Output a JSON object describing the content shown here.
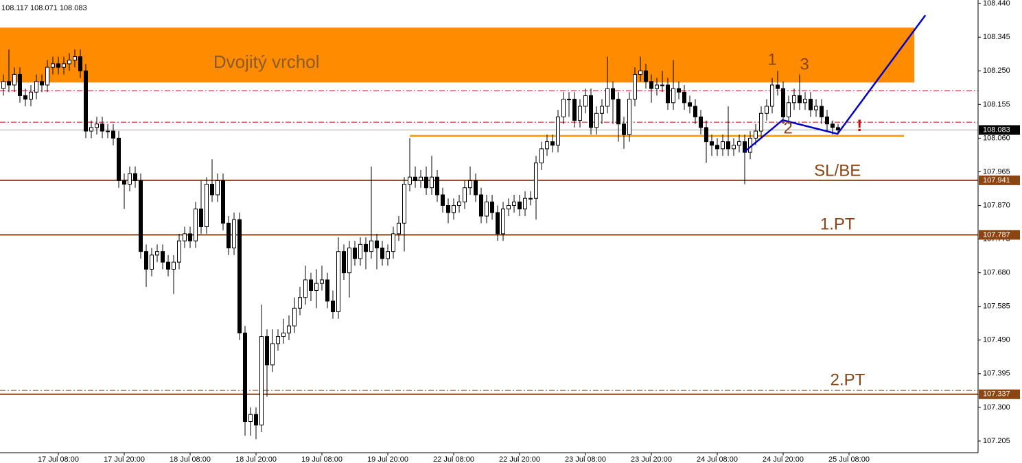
{
  "chart_data": {
    "type": "candlestick",
    "header": "108.117 108.071 108.083",
    "open": [
      108.2,
      108.22,
      108.21,
      108.24,
      108.18,
      108.17,
      108.19,
      108.22,
      108.21,
      108.26,
      108.27,
      108.26,
      108.27,
      108.28,
      108.29,
      108.25,
      108.08,
      108.09,
      108.1,
      108.08,
      108.08,
      108.06,
      107.94,
      107.93,
      107.96,
      107.94,
      107.74,
      107.69,
      107.73,
      107.74,
      107.71,
      107.69,
      107.71,
      107.77,
      107.79,
      107.77,
      107.86,
      107.81,
      107.93,
      107.9,
      107.94,
      107.82,
      107.75,
      107.83,
      107.51,
      107.26,
      107.28,
      107.25,
      107.5,
      107.42,
      107.48,
      107.5,
      107.51,
      107.53,
      107.58,
      107.61,
      107.66,
      107.63,
      107.65,
      107.66,
      107.6,
      107.57,
      107.74,
      107.68,
      107.75,
      107.72,
      107.76,
      107.74,
      107.77,
      107.75,
      107.72,
      107.74,
      107.79,
      107.82,
      107.93,
      107.95,
      107.94,
      107.95,
      107.92,
      107.95,
      107.9,
      107.87,
      107.85,
      107.87,
      107.88,
      107.92,
      107.94,
      107.9,
      107.84,
      107.88,
      107.85,
      107.79,
      107.86,
      107.87,
      107.88,
      107.86,
      107.89,
      107.89,
      107.99,
      108.03,
      108.05,
      108.04,
      108.12,
      108.17,
      108.17,
      108.11,
      108.15,
      108.18,
      108.09,
      108.13,
      108.15,
      108.2,
      108.17,
      108.1,
      108.07,
      108.17,
      108.24,
      108.25,
      108.22,
      108.2,
      108.21,
      108.21,
      108.16,
      108.2,
      108.19,
      108.16,
      108.15,
      108.12,
      108.09,
      108.05,
      108.04,
      108.03,
      108.05,
      108.03,
      108.04,
      108.05,
      108.02,
      108.06,
      108.08,
      108.13,
      108.15,
      108.21,
      108.2,
      108.12,
      108.16,
      108.18,
      108.16,
      108.17,
      108.14,
      108.15,
      108.12,
      108.1,
      108.09
    ],
    "high": [
      108.24,
      108.31,
      108.26,
      108.26,
      108.2,
      108.21,
      108.24,
      108.24,
      108.28,
      108.29,
      108.29,
      108.29,
      108.3,
      108.31,
      108.31,
      108.27,
      108.11,
      108.12,
      108.12,
      108.1,
      108.1,
      108.08,
      107.96,
      107.98,
      107.98,
      107.96,
      107.76,
      107.75,
      107.76,
      107.76,
      107.73,
      107.73,
      107.79,
      107.81,
      107.81,
      107.88,
      107.94,
      107.95,
      108.0,
      107.96,
      107.96,
      107.84,
      107.85,
      107.85,
      107.53,
      107.3,
      107.3,
      107.59,
      107.52,
      107.52,
      107.52,
      107.55,
      107.56,
      107.61,
      107.64,
      107.7,
      107.68,
      107.69,
      107.7,
      107.68,
      107.63,
      107.78,
      107.76,
      107.77,
      107.77,
      107.78,
      107.78,
      107.98,
      107.79,
      107.77,
      107.76,
      107.81,
      107.84,
      107.95,
      108.06,
      107.98,
      107.97,
      107.98,
      108.01,
      107.97,
      107.92,
      107.89,
      107.89,
      107.9,
      107.94,
      107.98,
      107.96,
      107.92,
      107.9,
      107.9,
      107.87,
      107.88,
      107.89,
      107.9,
      107.9,
      107.91,
      107.91,
      108.01,
      108.05,
      108.07,
      108.07,
      108.14,
      108.19,
      108.19,
      108.19,
      108.17,
      108.2,
      108.2,
      108.15,
      108.17,
      108.29,
      108.22,
      108.19,
      108.12,
      108.19,
      108.26,
      108.29,
      108.27,
      108.24,
      108.23,
      108.25,
      108.23,
      108.28,
      108.22,
      108.21,
      108.18,
      108.17,
      108.14,
      108.11,
      108.07,
      108.06,
      108.07,
      108.15,
      108.06,
      108.07,
      108.07,
      108.08,
      108.1,
      108.15,
      108.17,
      108.23,
      108.25,
      108.22,
      108.18,
      108.2,
      108.24,
      108.19,
      108.19,
      108.17,
      108.17,
      108.14,
      108.11,
      108.1
    ],
    "low": [
      108.18,
      108.19,
      108.19,
      108.16,
      108.15,
      108.15,
      108.17,
      108.19,
      108.19,
      108.24,
      108.24,
      108.24,
      108.25,
      108.26,
      108.23,
      108.06,
      108.06,
      108.07,
      108.06,
      108.06,
      108.04,
      107.92,
      107.86,
      107.91,
      107.92,
      107.72,
      107.64,
      107.67,
      107.71,
      107.69,
      107.67,
      107.62,
      107.69,
      107.75,
      107.75,
      107.75,
      107.79,
      107.79,
      107.88,
      107.88,
      107.8,
      107.73,
      107.73,
      107.49,
      107.22,
      107.22,
      107.21,
      107.23,
      107.33,
      107.4,
      107.46,
      107.48,
      107.49,
      107.51,
      107.56,
      107.59,
      107.6,
      107.58,
      107.63,
      107.58,
      107.55,
      107.55,
      107.66,
      107.61,
      107.7,
      107.7,
      107.69,
      107.72,
      107.69,
      107.7,
      107.7,
      107.72,
      107.77,
      107.74,
      107.91,
      107.92,
      107.92,
      107.9,
      107.9,
      107.88,
      107.85,
      107.82,
      107.83,
      107.85,
      107.86,
      107.9,
      107.88,
      107.82,
      107.82,
      107.83,
      107.77,
      107.77,
      107.84,
      107.85,
      107.84,
      107.84,
      107.87,
      107.83,
      107.97,
      108.01,
      108.02,
      108.02,
      108.1,
      108.12,
      108.09,
      108.09,
      108.13,
      108.07,
      108.07,
      108.1,
      108.13,
      108.1,
      108.05,
      108.03,
      108.05,
      108.15,
      108.22,
      108.2,
      108.16,
      108.18,
      108.19,
      108.14,
      108.14,
      108.17,
      108.14,
      108.13,
      108.1,
      108.07,
      107.99,
      108.01,
      108.01,
      108.01,
      108.01,
      108.01,
      108.02,
      107.93,
      108.0,
      108.04,
      108.06,
      108.11,
      108.13,
      108.18,
      108.1,
      108.1,
      108.14,
      108.14,
      108.14,
      108.12,
      108.12,
      108.1,
      108.08,
      108.07,
      108.07
    ],
    "close": [
      108.22,
      108.21,
      108.24,
      108.18,
      108.17,
      108.19,
      108.22,
      108.21,
      108.26,
      108.27,
      108.26,
      108.27,
      108.28,
      108.29,
      108.25,
      108.08,
      108.09,
      108.1,
      108.08,
      108.08,
      108.06,
      107.94,
      107.93,
      107.96,
      107.94,
      107.74,
      107.69,
      107.73,
      107.74,
      107.71,
      107.69,
      107.71,
      107.77,
      107.79,
      107.77,
      107.86,
      107.81,
      107.93,
      107.9,
      107.94,
      107.82,
      107.75,
      107.83,
      107.51,
      107.26,
      107.28,
      107.25,
      107.5,
      107.42,
      107.48,
      107.5,
      107.51,
      107.53,
      107.58,
      107.61,
      107.66,
      107.63,
      107.65,
      107.66,
      107.6,
      107.57,
      107.74,
      107.68,
      107.75,
      107.72,
      107.76,
      107.74,
      107.77,
      107.75,
      107.72,
      107.74,
      107.79,
      107.82,
      107.93,
      107.95,
      107.94,
      107.95,
      107.92,
      107.95,
      107.9,
      107.87,
      107.85,
      107.87,
      107.88,
      107.92,
      107.94,
      107.9,
      107.84,
      107.88,
      107.85,
      107.79,
      107.86,
      107.87,
      107.88,
      107.86,
      107.89,
      107.89,
      107.99,
      108.03,
      108.05,
      108.04,
      108.12,
      108.17,
      108.17,
      108.11,
      108.15,
      108.18,
      108.09,
      108.13,
      108.15,
      108.2,
      108.17,
      108.1,
      108.07,
      108.17,
      108.24,
      108.25,
      108.22,
      108.2,
      108.21,
      108.21,
      108.16,
      108.2,
      108.19,
      108.16,
      108.15,
      108.12,
      108.09,
      108.05,
      108.04,
      108.03,
      108.05,
      108.03,
      108.04,
      108.05,
      108.02,
      108.06,
      108.08,
      108.13,
      108.15,
      108.21,
      108.2,
      108.12,
      108.16,
      108.18,
      108.16,
      108.17,
      108.14,
      108.15,
      108.12,
      108.1,
      108.09,
      108.083
    ],
    "xlim": [
      -0.625,
      177.5
    ],
    "ylim": [
      107.172,
      108.45
    ],
    "yticks": [
      {
        "value": 108.44,
        "label": "108.440"
      },
      108.345,
      {
        "value": 108.25,
        "label": "108.250"
      },
      108.155,
      {
        "value": 108.06,
        "label": "108.060"
      },
      107.965,
      {
        "value": 107.87,
        "label": "107.870"
      },
      107.775,
      {
        "value": 107.68,
        "label": "107.680"
      },
      107.585,
      {
        "value": 107.49,
        "label": "107.490"
      },
      107.395,
      {
        "value": 107.3,
        "label": "107.300"
      },
      107.205
    ],
    "xticks": [
      {
        "value": 10,
        "label": "17 Jul 08:00"
      },
      {
        "value": 22,
        "label": "17 Jul 20:00"
      },
      {
        "value": 34,
        "label": "18 Jul 08:00"
      },
      {
        "value": 46,
        "label": "18 Jul 20:00"
      },
      {
        "value": 58,
        "label": "19 Jul 08:00"
      },
      {
        "value": 70,
        "label": "19 Jul 20:00"
      },
      {
        "value": 82,
        "label": "22 Jul 08:00"
      },
      {
        "value": 94,
        "label": "22 Jul 20:00"
      },
      {
        "value": 106,
        "label": "23 Jul 08:00"
      },
      {
        "value": 118,
        "label": "23 Jul 20:00"
      },
      {
        "value": 130,
        "label": "24 Jul 08:00"
      },
      {
        "value": 142,
        "label": "24 Jul 20:00"
      },
      {
        "value": 154,
        "label": "25 Jul 08:00"
      }
    ],
    "up_color": "#ffffff",
    "down_color": "#000000",
    "wick_color": "#000000",
    "zone": {
      "x": [
        -0.625,
        165.9
      ],
      "y": [
        108.217,
        108.372
      ],
      "color": "#ff8c00",
      "label": "Dvojitý vrchol",
      "label_x": 47.9,
      "label_y": 108.272,
      "label_color": "#8a5a2b"
    },
    "levels": [
      {
        "value": 107.941,
        "label": "SL/BE",
        "label_x": 151.9,
        "label_y": 107.966,
        "color": "#8b4513"
      },
      {
        "value": 107.787,
        "label": "1.PT",
        "label_x": 151.9,
        "label_y": 107.815,
        "color": "#8b4513"
      },
      {
        "value": 107.337,
        "label": "2.PT",
        "label_x": 153.75,
        "label_y": 107.375,
        "color": "#8b4513"
      }
    ],
    "dash_lines": [
      {
        "value": 108.194,
        "color": "#d40000"
      },
      {
        "value": 108.105,
        "color": "#d40000"
      },
      {
        "value": 107.348,
        "color": "#8b4513"
      }
    ],
    "current_price": {
      "value": 108.083,
      "color": "#9aa0a6"
    },
    "support": {
      "x": [
        74,
        164
      ],
      "y": 108.066,
      "color": "#ffa500"
    },
    "path": {
      "x": [
        135,
        141.9,
        151.9,
        167.9
      ],
      "y": [
        108.022,
        108.111,
        108.072,
        108.407
      ],
      "color": "#0000cc"
    },
    "annotations": [
      {
        "text": "1",
        "x": 140,
        "y": 108.279,
        "color": "#8b4513"
      },
      {
        "text": "2",
        "x": 142.9,
        "y": 108.086,
        "color": "#8b4513"
      },
      {
        "text": "3",
        "x": 145.9,
        "y": 108.266,
        "color": "#8b4513"
      },
      {
        "text": "!",
        "x": 155.9,
        "y": 108.092,
        "color": "#e00000"
      }
    ]
  }
}
